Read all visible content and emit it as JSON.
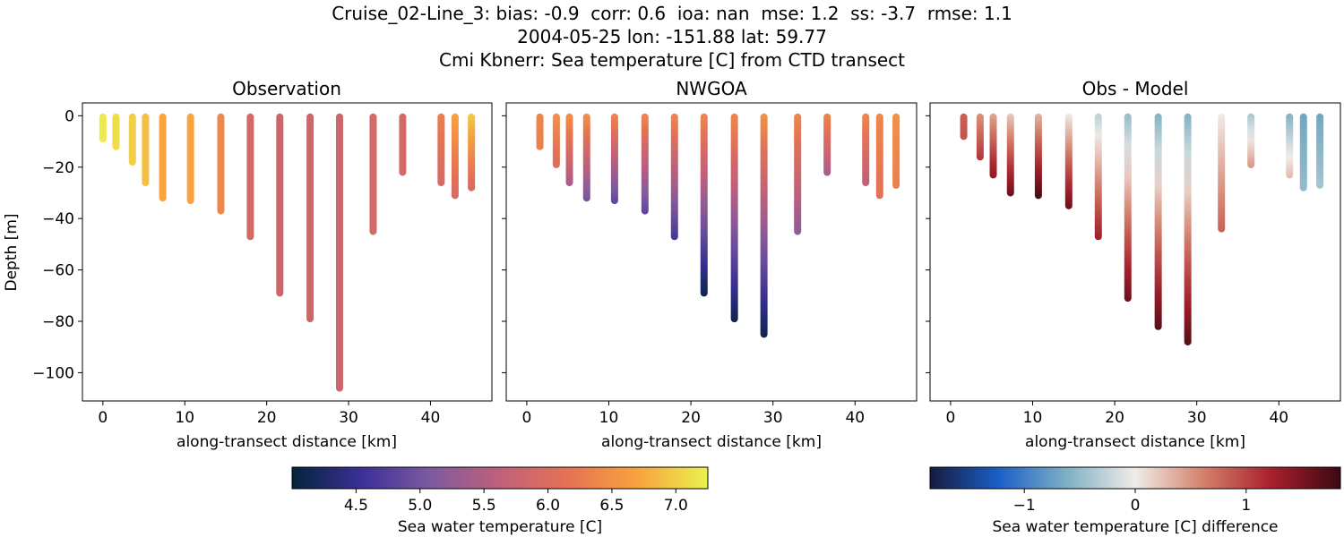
{
  "title_lines": [
    "Cruise_02-Line_3: bias: -0.9  corr: 0.6  ioa: nan  mse: 1.2  ss: -3.7  rmse: 1.1",
    "2004-05-25 lon: -151.88 lat: 59.77",
    "Cmi Kbnerr: Sea temperature [C] from CTD transect"
  ],
  "chart_data": [
    {
      "type": "scatter",
      "title": "Observation",
      "xlabel": "along-transect distance [km]",
      "ylabel": "Depth [m]",
      "xlim": [
        -2.5,
        47.5
      ],
      "ylim": [
        -111,
        5
      ],
      "xticks": [
        0,
        10,
        20,
        30,
        40
      ],
      "yticks": [
        0,
        -20,
        -40,
        -60,
        -80,
        -100
      ],
      "colormap": "thermal",
      "stations": [
        {
          "x": 0.0,
          "max_depth": -9,
          "temp_top": 7.2,
          "temp_bottom": 7.2
        },
        {
          "x": 1.6,
          "max_depth": -12,
          "temp_top": 7.1,
          "temp_bottom": 7.1
        },
        {
          "x": 3.6,
          "max_depth": -18,
          "temp_top": 7.0,
          "temp_bottom": 7.0
        },
        {
          "x": 5.2,
          "max_depth": -26,
          "temp_top": 6.9,
          "temp_bottom": 6.9
        },
        {
          "x": 7.3,
          "max_depth": -32,
          "temp_top": 6.7,
          "temp_bottom": 6.7
        },
        {
          "x": 10.7,
          "max_depth": -33,
          "temp_top": 6.7,
          "temp_bottom": 6.7
        },
        {
          "x": 14.4,
          "max_depth": -37,
          "temp_top": 6.4,
          "temp_bottom": 6.4
        },
        {
          "x": 18.0,
          "max_depth": -47,
          "temp_top": 5.9,
          "temp_bottom": 5.9
        },
        {
          "x": 21.6,
          "max_depth": -69,
          "temp_top": 5.8,
          "temp_bottom": 5.8
        },
        {
          "x": 25.3,
          "max_depth": -79,
          "temp_top": 5.8,
          "temp_bottom": 5.8
        },
        {
          "x": 28.9,
          "max_depth": -106,
          "temp_top": 5.8,
          "temp_bottom": 5.8
        },
        {
          "x": 33.0,
          "max_depth": -45,
          "temp_top": 5.9,
          "temp_bottom": 5.9
        },
        {
          "x": 36.6,
          "max_depth": -22,
          "temp_top": 5.9,
          "temp_bottom": 5.9
        },
        {
          "x": 41.3,
          "max_depth": -26,
          "temp_top": 6.3,
          "temp_bottom": 5.9
        },
        {
          "x": 43.0,
          "max_depth": -31,
          "temp_top": 6.7,
          "temp_bottom": 5.9
        },
        {
          "x": 45.0,
          "max_depth": -28,
          "temp_top": 7.0,
          "temp_bottom": 5.9
        }
      ]
    },
    {
      "type": "scatter",
      "title": "NWGOA",
      "xlabel": "along-transect distance [km]",
      "ylabel": "",
      "xlim": [
        -2.5,
        47.5
      ],
      "ylim": [
        -111,
        5
      ],
      "xticks": [
        0,
        10,
        20,
        30,
        40
      ],
      "yticks": [
        0,
        -20,
        -40,
        -60,
        -80,
        -100
      ],
      "colormap": "thermal",
      "stations": [
        {
          "x": 1.6,
          "max_depth": -12,
          "temp_top": 6.4,
          "temp_bottom": 6.3
        },
        {
          "x": 3.6,
          "max_depth": -19,
          "temp_top": 6.5,
          "temp_bottom": 6.0
        },
        {
          "x": 5.2,
          "max_depth": -26,
          "temp_top": 6.5,
          "temp_bottom": 5.4
        },
        {
          "x": 7.3,
          "max_depth": -32,
          "temp_top": 6.5,
          "temp_bottom": 5.0
        },
        {
          "x": 10.7,
          "max_depth": -33,
          "temp_top": 6.4,
          "temp_bottom": 4.8
        },
        {
          "x": 14.4,
          "max_depth": -37,
          "temp_top": 6.4,
          "temp_bottom": 4.8
        },
        {
          "x": 18.0,
          "max_depth": -47,
          "temp_top": 6.4,
          "temp_bottom": 4.6
        },
        {
          "x": 21.6,
          "max_depth": -69,
          "temp_top": 6.4,
          "temp_bottom": 4.1
        },
        {
          "x": 25.3,
          "max_depth": -79,
          "temp_top": 6.4,
          "temp_bottom": 4.1
        },
        {
          "x": 28.9,
          "max_depth": -85,
          "temp_top": 6.5,
          "temp_bottom": 4.1
        },
        {
          "x": 33.0,
          "max_depth": -45,
          "temp_top": 6.4,
          "temp_bottom": 5.2
        },
        {
          "x": 36.6,
          "max_depth": -22,
          "temp_top": 6.4,
          "temp_bottom": 5.4
        },
        {
          "x": 41.3,
          "max_depth": -26,
          "temp_top": 6.4,
          "temp_bottom": 5.6
        },
        {
          "x": 43.0,
          "max_depth": -31,
          "temp_top": 6.4,
          "temp_bottom": 6.1
        },
        {
          "x": 45.0,
          "max_depth": -27,
          "temp_top": 6.5,
          "temp_bottom": 6.3
        }
      ]
    },
    {
      "type": "scatter",
      "title": "Obs - Model",
      "xlabel": "along-transect distance [km]",
      "ylabel": "",
      "xlim": [
        -2.5,
        47.5
      ],
      "ylim": [
        -111,
        5
      ],
      "xticks": [
        0,
        10,
        20,
        30,
        40
      ],
      "yticks": [
        0,
        -20,
        -40,
        -60,
        -80,
        -100
      ],
      "colormap": "balance",
      "stations": [
        {
          "x": 1.6,
          "max_depth": -8,
          "diff_top": 0.8,
          "diff_bottom": 0.9
        },
        {
          "x": 3.6,
          "max_depth": -16,
          "diff_top": 0.5,
          "diff_bottom": 1.1
        },
        {
          "x": 5.2,
          "max_depth": -23,
          "diff_top": 0.4,
          "diff_bottom": 1.4
        },
        {
          "x": 7.3,
          "max_depth": -30,
          "diff_top": 0.2,
          "diff_bottom": 1.6
        },
        {
          "x": 10.7,
          "max_depth": -31,
          "diff_top": 0.3,
          "diff_bottom": 1.8
        },
        {
          "x": 14.4,
          "max_depth": -35,
          "diff_top": 0.0,
          "diff_bottom": 1.6
        },
        {
          "x": 18.0,
          "max_depth": -47,
          "diff_top": -0.3,
          "diff_bottom": 1.3
        },
        {
          "x": 21.6,
          "max_depth": -71,
          "diff_top": -0.5,
          "diff_bottom": 1.6
        },
        {
          "x": 25.3,
          "max_depth": -82,
          "diff_top": -0.6,
          "diff_bottom": 1.7
        },
        {
          "x": 28.9,
          "max_depth": -88,
          "diff_top": -0.6,
          "diff_bottom": 1.7
        },
        {
          "x": 33.0,
          "max_depth": -44,
          "diff_top": 0.0,
          "diff_bottom": 0.8
        },
        {
          "x": 36.6,
          "max_depth": -19,
          "diff_top": -0.4,
          "diff_bottom": 0.5
        },
        {
          "x": 41.3,
          "max_depth": -23,
          "diff_top": -0.6,
          "diff_bottom": 0.3
        },
        {
          "x": 43.0,
          "max_depth": -28,
          "diff_top": -0.7,
          "diff_bottom": -0.5
        },
        {
          "x": 45.0,
          "max_depth": -27,
          "diff_top": -0.7,
          "diff_bottom": -0.4
        }
      ]
    }
  ],
  "colorbars": [
    {
      "label": "Sea water temperature [C]",
      "range": [
        4.0,
        7.25
      ],
      "ticks": [
        4.5,
        5.0,
        5.5,
        6.0,
        6.5,
        7.0
      ],
      "tick_labels": [
        "4.5",
        "5.0",
        "5.5",
        "6.0",
        "6.5",
        "7.0"
      ],
      "colormap": "thermal"
    },
    {
      "label": "Sea water temperature [C] difference",
      "range": [
        -1.85,
        1.85
      ],
      "ticks": [
        -1,
        0,
        1
      ],
      "tick_labels": [
        "−1",
        "0",
        "1"
      ],
      "colormap": "balance"
    }
  ],
  "colormaps": {
    "thermal": [
      "#04233b",
      "#3b2f98",
      "#7d5aa0",
      "#c0607a",
      "#e67353",
      "#f9a33f",
      "#eaf24e"
    ],
    "balance": [
      "#171b3e",
      "#1a5fc7",
      "#7fb0c4",
      "#f0ece8",
      "#d4806a",
      "#a81f2c",
      "#3c0912"
    ]
  }
}
